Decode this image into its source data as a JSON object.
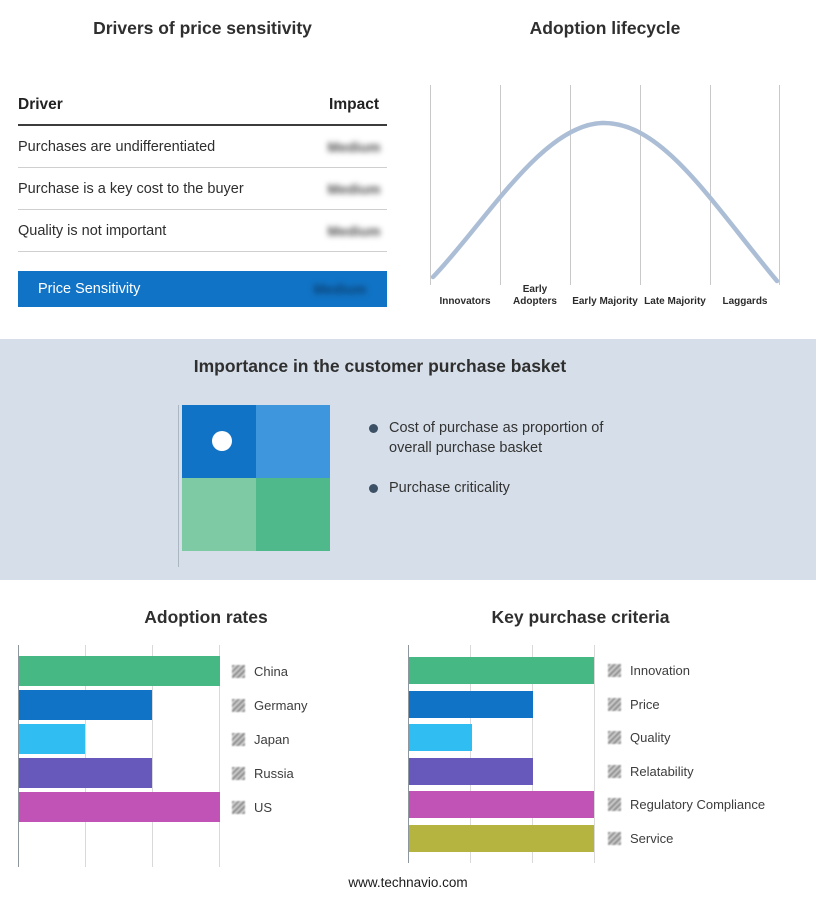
{
  "drivers": {
    "title": "Drivers of price sensitivity",
    "header": {
      "driver": "Driver",
      "impact": "Impact"
    },
    "rows": [
      {
        "driver": "Purchases are undifferentiated",
        "impact": "Medium"
      },
      {
        "driver": "Purchase is a key cost to the buyer",
        "impact": "Medium"
      },
      {
        "driver": "Quality is not important",
        "impact": "Medium"
      }
    ],
    "summary": {
      "label": "Price Sensitivity",
      "impact": "Medium",
      "bar_color": "#1173c5"
    }
  },
  "lifecycle": {
    "title": "Adoption lifecycle",
    "curve_color": "#abbed6",
    "stages": [
      {
        "label": "Innovators"
      },
      {
        "label": "Early Adopters"
      },
      {
        "label": "Early Majority"
      },
      {
        "label": "Late Majority"
      },
      {
        "label": "Laggards"
      }
    ]
  },
  "basket": {
    "title": "Importance in the customer purchase basket",
    "bullets": [
      "Cost of purchase as proportion of overall purchase basket",
      "Purchase criticality"
    ],
    "quadrant": {
      "top_left": "#1173c5",
      "top_right": "#3e96dd",
      "bottom_left": "#7ecaa4",
      "bottom_right": "#4fb98c"
    }
  },
  "adoption_rates": {
    "title": "Adoption rates",
    "categories": [
      "China",
      "Germany",
      "Japan",
      "Russia",
      "US"
    ],
    "values": [
      100,
      66,
      33,
      66,
      100
    ],
    "colors": [
      "#45b884",
      "#1173c5",
      "#30bdf2",
      "#6659bb",
      "#c153b6"
    ]
  },
  "criteria": {
    "title": "Key purchase criteria",
    "categories": [
      "Innovation",
      "Price",
      "Quality",
      "Relatability",
      "Regulatory Compliance",
      "Service"
    ],
    "values": [
      100,
      67,
      34,
      67,
      100,
      100
    ],
    "colors": [
      "#45b884",
      "#1173c5",
      "#30bdf2",
      "#6659bb",
      "#c153b6",
      "#b6b441"
    ]
  },
  "footer": "www.technavio.com",
  "chart_data": [
    {
      "type": "table",
      "title": "Drivers of price sensitivity",
      "columns": [
        "Driver",
        "Impact"
      ],
      "rows": [
        [
          "Purchases are undifferentiated",
          "Medium"
        ],
        [
          "Purchase is a key cost to the buyer",
          "Medium"
        ],
        [
          "Quality is not important",
          "Medium"
        ],
        [
          "Price Sensitivity",
          "Medium"
        ]
      ]
    },
    {
      "type": "area",
      "title": "Adoption lifecycle",
      "categories": [
        "Innovators",
        "Early Adopters",
        "Early Majority",
        "Late Majority",
        "Laggards"
      ],
      "values": [
        10,
        60,
        100,
        60,
        10
      ],
      "description": "Bell curve peaking at Early Majority, gridlines between stages, no y-axis labels"
    },
    {
      "type": "bar",
      "title": "Adoption rates",
      "orientation": "horizontal",
      "categories": [
        "China",
        "Germany",
        "Japan",
        "Russia",
        "US"
      ],
      "values": [
        100,
        66,
        33,
        66,
        100
      ],
      "xlabel": "",
      "ylabel": "",
      "xlim": [
        0,
        100
      ],
      "grid": true,
      "legend_position": "right"
    },
    {
      "type": "bar",
      "title": "Key purchase criteria",
      "orientation": "horizontal",
      "categories": [
        "Innovation",
        "Price",
        "Quality",
        "Relatability",
        "Regulatory Compliance",
        "Service"
      ],
      "values": [
        100,
        67,
        34,
        67,
        100,
        100
      ],
      "xlabel": "",
      "ylabel": "",
      "xlim": [
        0,
        100
      ],
      "grid": true,
      "legend_position": "right"
    }
  ]
}
